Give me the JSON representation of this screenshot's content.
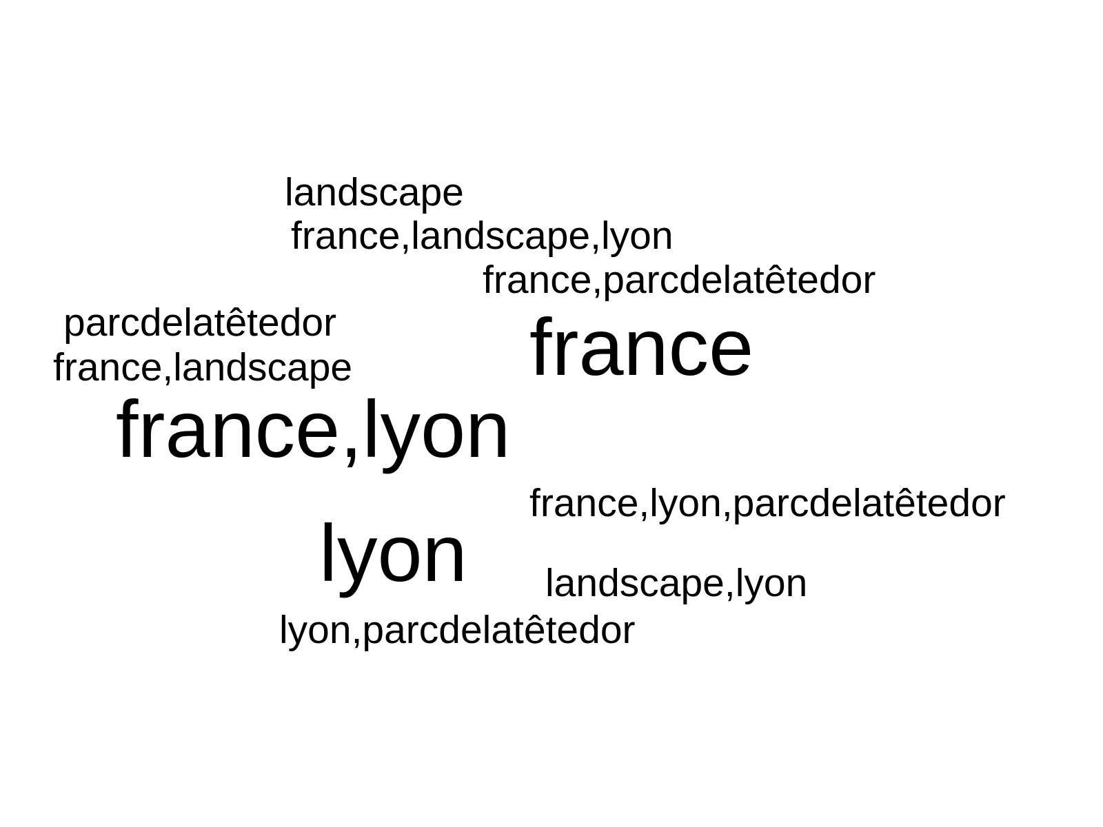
{
  "word_cloud": {
    "text_color": "#000000",
    "background_color": "#ffffff",
    "words": [
      {
        "text": "landscape"
      },
      {
        "text": "france,landscape,lyon"
      },
      {
        "text": "france,parcdelatêtedor"
      },
      {
        "text": "parcdelatêtedor"
      },
      {
        "text": "france"
      },
      {
        "text": "france,landscape"
      },
      {
        "text": "france,lyon"
      },
      {
        "text": "france,lyon,parcdelatêtedor"
      },
      {
        "text": "lyon"
      },
      {
        "text": "landscape,lyon"
      },
      {
        "text": "lyon,parcdelatêtedor"
      }
    ]
  }
}
